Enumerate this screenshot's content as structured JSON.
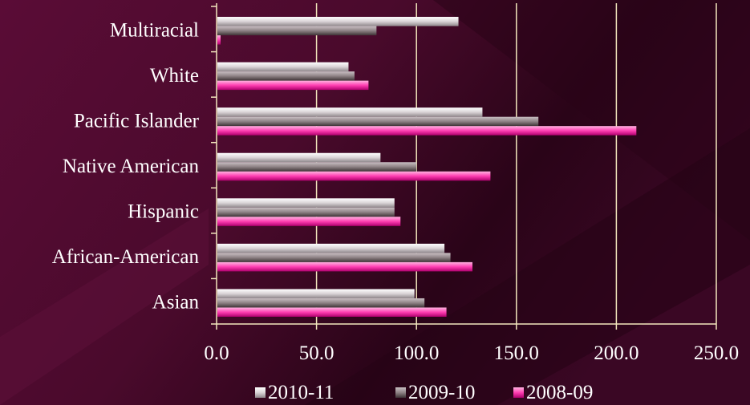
{
  "chart_data": {
    "type": "bar",
    "orientation": "horizontal",
    "categories": [
      "Asian",
      "African-American",
      "Hispanic",
      "Native American",
      "Pacific Islander",
      "White",
      "Multiracial"
    ],
    "series": [
      {
        "name": "2010-11",
        "values": [
          99,
          114,
          89,
          82,
          133,
          66,
          121
        ]
      },
      {
        "name": "2009-10",
        "values": [
          104,
          117,
          89,
          100,
          161,
          69,
          80
        ]
      },
      {
        "name": "2008-09",
        "values": [
          115,
          128,
          92,
          137,
          210,
          76,
          2
        ]
      }
    ],
    "x_ticks": [
      "0.0",
      "50.0",
      "100.0",
      "150.0",
      "200.0",
      "250.0"
    ],
    "xlim": [
      0,
      250
    ],
    "grid": "vertical",
    "legend_position": "bottom",
    "colors": {
      "background": "#4a0a2c",
      "gridline": "#f3e7bd",
      "axis": "#f3e7bd",
      "series": [
        "#d9d3d6",
        "#8e8285",
        "#ff3fb2"
      ]
    }
  }
}
